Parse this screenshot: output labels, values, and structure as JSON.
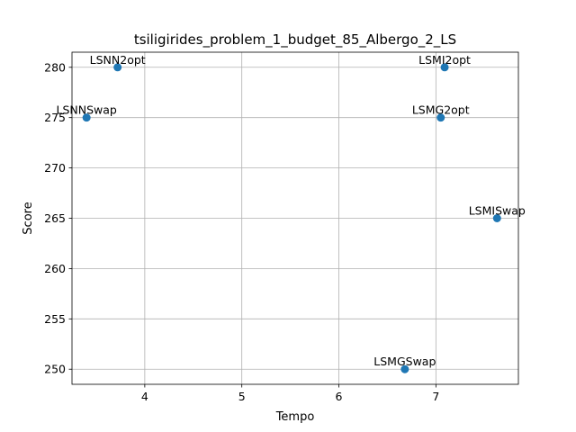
{
  "chart_data": {
    "type": "scatter",
    "title": "tsiligirides_problem_1_budget_85_Albergo_2_LS",
    "xlabel": "Tempo",
    "ylabel": "Score",
    "xlim": [
      3.25,
      7.85
    ],
    "ylim": [
      248.5,
      281.5
    ],
    "xticks": [
      4,
      5,
      6,
      7
    ],
    "yticks": [
      250,
      255,
      260,
      265,
      270,
      275,
      280
    ],
    "grid": true,
    "marker_color": "#1f77b4",
    "points": [
      {
        "label": "LSNN2opt",
        "x": 3.72,
        "y": 280
      },
      {
        "label": "LSNNSwap",
        "x": 3.4,
        "y": 275
      },
      {
        "label": "LSMI2opt",
        "x": 7.09,
        "y": 280
      },
      {
        "label": "LSMG2opt",
        "x": 7.05,
        "y": 275
      },
      {
        "label": "LSMISwap",
        "x": 7.63,
        "y": 265
      },
      {
        "label": "LSMGSwap",
        "x": 6.68,
        "y": 250
      }
    ]
  }
}
